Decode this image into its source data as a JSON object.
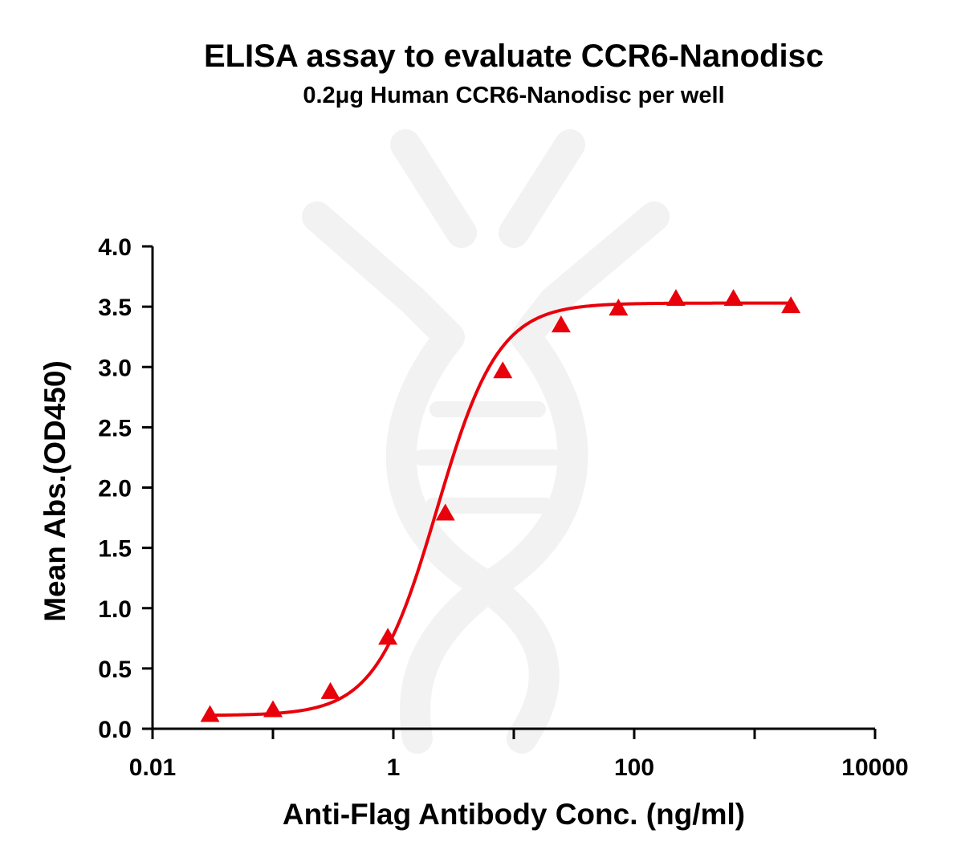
{
  "chart_data": {
    "type": "line",
    "title": "ELISA assay to evaluate CCR6-Nanodisc",
    "subtitle": "0.2μg Human CCR6-Nanodisc per well",
    "xlabel": "Anti-Flag Antibody Conc. (ng/ml)",
    "ylabel": "Mean Abs.(OD450)",
    "xscale": "log",
    "xlim": [
      0.01,
      10000
    ],
    "ylim": [
      0.0,
      4.0
    ],
    "xticks": [
      "0.01",
      "1",
      "100",
      "10000"
    ],
    "yticks": [
      "0.0",
      "0.5",
      "1.0",
      "1.5",
      "2.0",
      "2.5",
      "3.0",
      "3.5",
      "4.0"
    ],
    "grid": false,
    "legend": "none",
    "series": [
      {
        "marker": "triangle",
        "color": "#e8000b",
        "x": [
          0.03,
          0.1,
          0.3,
          0.9,
          2.7,
          8.1,
          24.7,
          74,
          222,
          667,
          2000
        ],
        "y": [
          0.11,
          0.15,
          0.3,
          0.75,
          1.78,
          2.96,
          3.34,
          3.48,
          3.56,
          3.56,
          3.5
        ]
      }
    ],
    "fit_curve": {
      "model": "4PL",
      "color": "#e8000b",
      "bottom": 0.11,
      "top": 3.53,
      "ec50": 2.3,
      "hill": 1.7
    }
  }
}
